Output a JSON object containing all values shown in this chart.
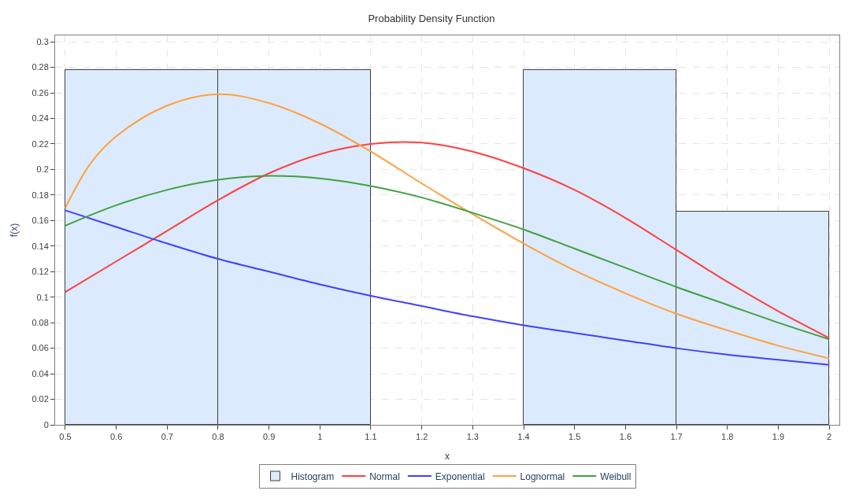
{
  "chart_data": {
    "type": "histogram",
    "title": "Probability Density Function",
    "xlabel": "x",
    "ylabel": "f(x)",
    "xlim": [
      0.48,
      2.02
    ],
    "xticks": [
      0.5,
      0.6,
      0.7,
      0.8,
      0.9,
      1,
      1.1,
      1.2,
      1.3,
      1.4,
      1.5,
      1.6,
      1.7,
      1.8,
      1.9,
      2
    ],
    "ylim": [
      0,
      0.305
    ],
    "yticks": [
      0,
      0.02,
      0.04,
      0.06,
      0.08,
      0.1,
      0.12,
      0.14,
      0.16,
      0.18,
      0.2,
      0.22,
      0.24,
      0.26,
      0.28,
      0.3
    ],
    "grid": true,
    "legend": "bottom",
    "series": [
      {
        "name": "Histogram",
        "color": "#dbeafc",
        "bins": [
          0.5,
          0.8,
          1.1,
          1.4,
          1.7,
          2.0
        ],
        "values": [
          0.278,
          0.278,
          0,
          0.278,
          0.167
        ]
      },
      {
        "name": "Normal",
        "type": "line",
        "color": "#ff4040",
        "x": [
          0.5,
          0.6,
          0.7,
          0.8,
          0.9,
          1.0,
          1.1,
          1.2,
          1.3,
          1.4,
          1.5,
          1.6,
          1.7,
          1.8,
          1.9,
          2.0
        ],
        "values": [
          0.104,
          0.128,
          0.152,
          0.176,
          0.197,
          0.212,
          0.22,
          0.221,
          0.214,
          0.201,
          0.184,
          0.162,
          0.137,
          0.112,
          0.089,
          0.068
        ]
      },
      {
        "name": "Exponential",
        "type": "line",
        "color": "#4040ff",
        "x": [
          0.5,
          0.6,
          0.7,
          0.8,
          0.9,
          1.0,
          1.1,
          1.2,
          1.3,
          1.4,
          1.5,
          1.6,
          1.7,
          1.8,
          1.9,
          2.0
        ],
        "values": [
          0.168,
          0.155,
          0.142,
          0.13,
          0.12,
          0.11,
          0.101,
          0.093,
          0.085,
          0.078,
          0.072,
          0.066,
          0.06,
          0.055,
          0.051,
          0.047
        ]
      },
      {
        "name": "Lognormal",
        "type": "line",
        "color": "#ffa040",
        "x": [
          0.5,
          0.55,
          0.6,
          0.7,
          0.8,
          0.9,
          1.0,
          1.1,
          1.2,
          1.3,
          1.4,
          1.5,
          1.6,
          1.7,
          1.8,
          1.9,
          2.0
        ],
        "values": [
          0.17,
          0.205,
          0.226,
          0.25,
          0.259,
          0.252,
          0.236,
          0.214,
          0.189,
          0.165,
          0.142,
          0.121,
          0.103,
          0.087,
          0.074,
          0.062,
          0.052
        ]
      },
      {
        "name": "Weibull",
        "type": "line",
        "color": "#40a040",
        "x": [
          0.5,
          0.6,
          0.7,
          0.8,
          0.9,
          1.0,
          1.1,
          1.2,
          1.3,
          1.4,
          1.5,
          1.6,
          1.7,
          1.8,
          1.9,
          2.0
        ],
        "values": [
          0.156,
          0.172,
          0.184,
          0.192,
          0.195,
          0.193,
          0.187,
          0.178,
          0.166,
          0.153,
          0.138,
          0.123,
          0.108,
          0.094,
          0.08,
          0.067
        ]
      }
    ]
  }
}
